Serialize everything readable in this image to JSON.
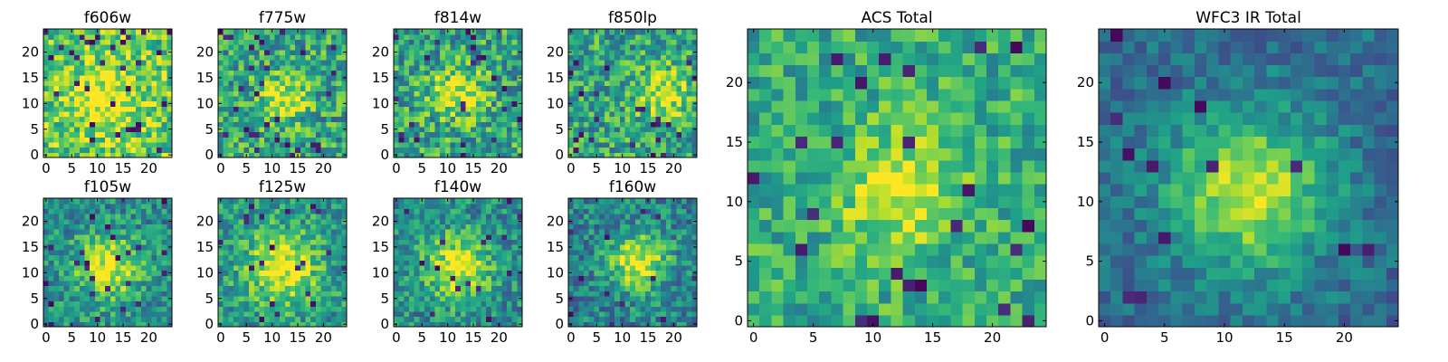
{
  "colormap": {
    "name": "viridis",
    "low": "#440154",
    "mid": "#21918c",
    "high": "#fde725"
  },
  "chart_data": [
    {
      "type": "heatmap",
      "title": "f606w",
      "grid_size": 25,
      "center": [
        12,
        11
      ],
      "sigma": 5.0,
      "peak": 0.28,
      "base": 0.74,
      "noise": 0.26,
      "dark_pixel_rate": 0.05,
      "xlim": [
        0,
        24
      ],
      "ylim": [
        0,
        24
      ],
      "xticks": [
        0,
        5,
        10,
        15,
        20
      ],
      "yticks": [
        0,
        5,
        10,
        15,
        20
      ]
    },
    {
      "type": "heatmap",
      "title": "f775w",
      "grid_size": 25,
      "center": [
        12,
        11
      ],
      "sigma": 3.2,
      "peak": 0.42,
      "base": 0.58,
      "noise": 0.28,
      "dark_pixel_rate": 0.05,
      "xlim": [
        0,
        24
      ],
      "ylim": [
        0,
        24
      ],
      "xticks": [
        0,
        5,
        10,
        15,
        20
      ],
      "yticks": [
        0,
        5,
        10,
        15,
        20
      ]
    },
    {
      "type": "heatmap",
      "title": "f814w",
      "grid_size": 25,
      "center": [
        12,
        12
      ],
      "sigma": 3.5,
      "peak": 0.4,
      "base": 0.58,
      "noise": 0.28,
      "dark_pixel_rate": 0.05,
      "xlim": [
        0,
        24
      ],
      "ylim": [
        0,
        24
      ],
      "xticks": [
        0,
        5,
        10,
        15,
        20
      ],
      "yticks": [
        0,
        5,
        10,
        15,
        20
      ]
    },
    {
      "type": "heatmap",
      "title": "f850lp",
      "grid_size": 25,
      "center": [
        18,
        12
      ],
      "sigma": 3.8,
      "peak": 0.38,
      "base": 0.58,
      "noise": 0.26,
      "dark_pixel_rate": 0.04,
      "xlim": [
        0,
        24
      ],
      "ylim": [
        0,
        24
      ],
      "xticks": [
        0,
        5,
        10,
        15,
        20
      ],
      "yticks": [
        0,
        5,
        10,
        15,
        20
      ]
    },
    {
      "type": "heatmap",
      "title": "f105w",
      "grid_size": 25,
      "center": [
        12,
        11
      ],
      "sigma": 4.5,
      "peak": 0.5,
      "base": 0.48,
      "noise": 0.22,
      "dark_pixel_rate": 0.04,
      "xlim": [
        0,
        24
      ],
      "ylim": [
        0,
        24
      ],
      "xticks": [
        0,
        5,
        10,
        15,
        20
      ],
      "yticks": [
        0,
        5,
        10,
        15,
        20
      ]
    },
    {
      "type": "heatmap",
      "title": "f125w",
      "grid_size": 25,
      "center": [
        12,
        11
      ],
      "sigma": 5.0,
      "peak": 0.48,
      "base": 0.52,
      "noise": 0.22,
      "dark_pixel_rate": 0.03,
      "xlim": [
        0,
        24
      ],
      "ylim": [
        0,
        24
      ],
      "xticks": [
        0,
        5,
        10,
        15,
        20
      ],
      "yticks": [
        0,
        5,
        10,
        15,
        20
      ]
    },
    {
      "type": "heatmap",
      "title": "f140w",
      "grid_size": 25,
      "center": [
        12,
        11
      ],
      "sigma": 4.5,
      "peak": 0.5,
      "base": 0.48,
      "noise": 0.22,
      "dark_pixel_rate": 0.03,
      "xlim": [
        0,
        24
      ],
      "ylim": [
        0,
        24
      ],
      "xticks": [
        0,
        5,
        10,
        15,
        20
      ],
      "yticks": [
        0,
        5,
        10,
        15,
        20
      ]
    },
    {
      "type": "heatmap",
      "title": "f160w",
      "grid_size": 25,
      "center": [
        13,
        12
      ],
      "sigma": 4.0,
      "peak": 0.55,
      "base": 0.44,
      "noise": 0.22,
      "dark_pixel_rate": 0.03,
      "xlim": [
        0,
        24
      ],
      "ylim": [
        0,
        24
      ],
      "xticks": [
        0,
        5,
        10,
        15,
        20
      ],
      "yticks": [
        0,
        5,
        10,
        15,
        20
      ]
    },
    {
      "type": "heatmap",
      "title": "ACS Total",
      "grid_size": 25,
      "center": [
        12,
        11
      ],
      "sigma": 3.5,
      "peak": 0.35,
      "base": 0.62,
      "noise": 0.2,
      "dark_pixel_rate": 0.025,
      "xlim": [
        0,
        24
      ],
      "ylim": [
        0,
        24
      ],
      "xticks": [
        0,
        5,
        10,
        15,
        20
      ],
      "yticks": [
        0,
        5,
        10,
        15,
        20
      ]
    },
    {
      "type": "heatmap",
      "title": "WFC3 IR Total",
      "grid_size": 25,
      "center": [
        12,
        11
      ],
      "sigma": 4.5,
      "peak": 0.58,
      "base": 0.36,
      "noise": 0.14,
      "dark_pixel_rate": 0.02,
      "xlim": [
        0,
        24
      ],
      "ylim": [
        0,
        24
      ],
      "xticks": [
        0,
        5,
        10,
        15,
        20
      ],
      "yticks": [
        0,
        5,
        10,
        15,
        20
      ]
    }
  ]
}
